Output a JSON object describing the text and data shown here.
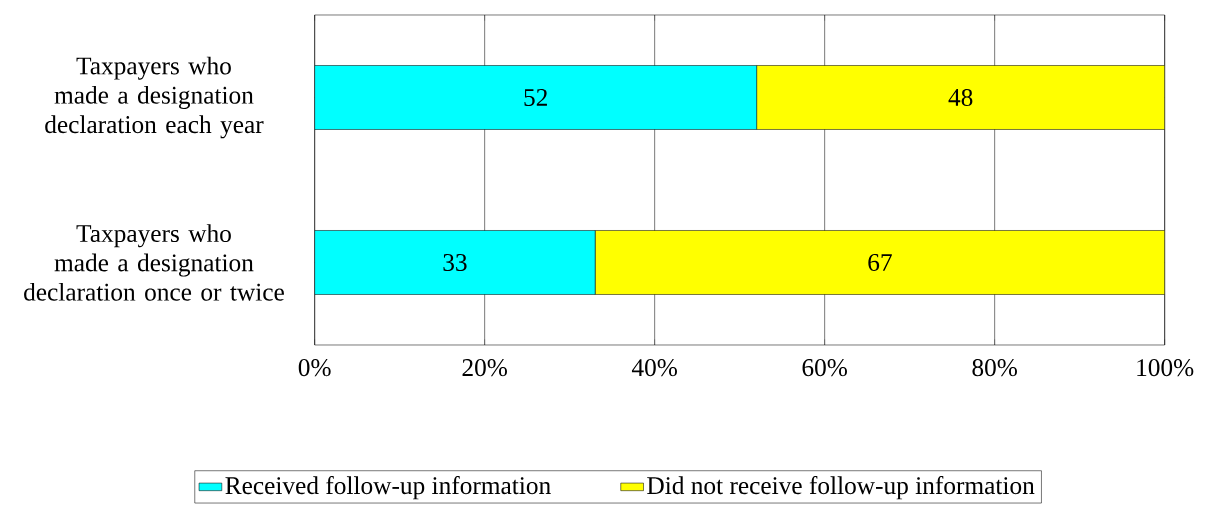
{
  "chart_data": {
    "type": "bar",
    "orientation": "horizontal",
    "stacked": true,
    "categories": [
      "Taxpayers who made a designation declaration each year",
      "Taxpayers who made a designation declaration once or twice"
    ],
    "series": [
      {
        "name": "Received follow-up information",
        "color": "#00ffff",
        "values": [
          52,
          33
        ]
      },
      {
        "name": "Did not receive follow-up information",
        "color": "#ffff00",
        "values": [
          48,
          67
        ]
      }
    ],
    "xlim": [
      0,
      100
    ],
    "xticks": [
      {
        "value": 0,
        "label": "0%"
      },
      {
        "value": 20,
        "label": "20%"
      },
      {
        "value": 40,
        "label": "40%"
      },
      {
        "value": 60,
        "label": "60%"
      },
      {
        "value": 80,
        "label": "80%"
      },
      {
        "value": 100,
        "label": "100%"
      }
    ],
    "grid": "x",
    "legend": "bottom",
    "data_labels": true
  }
}
